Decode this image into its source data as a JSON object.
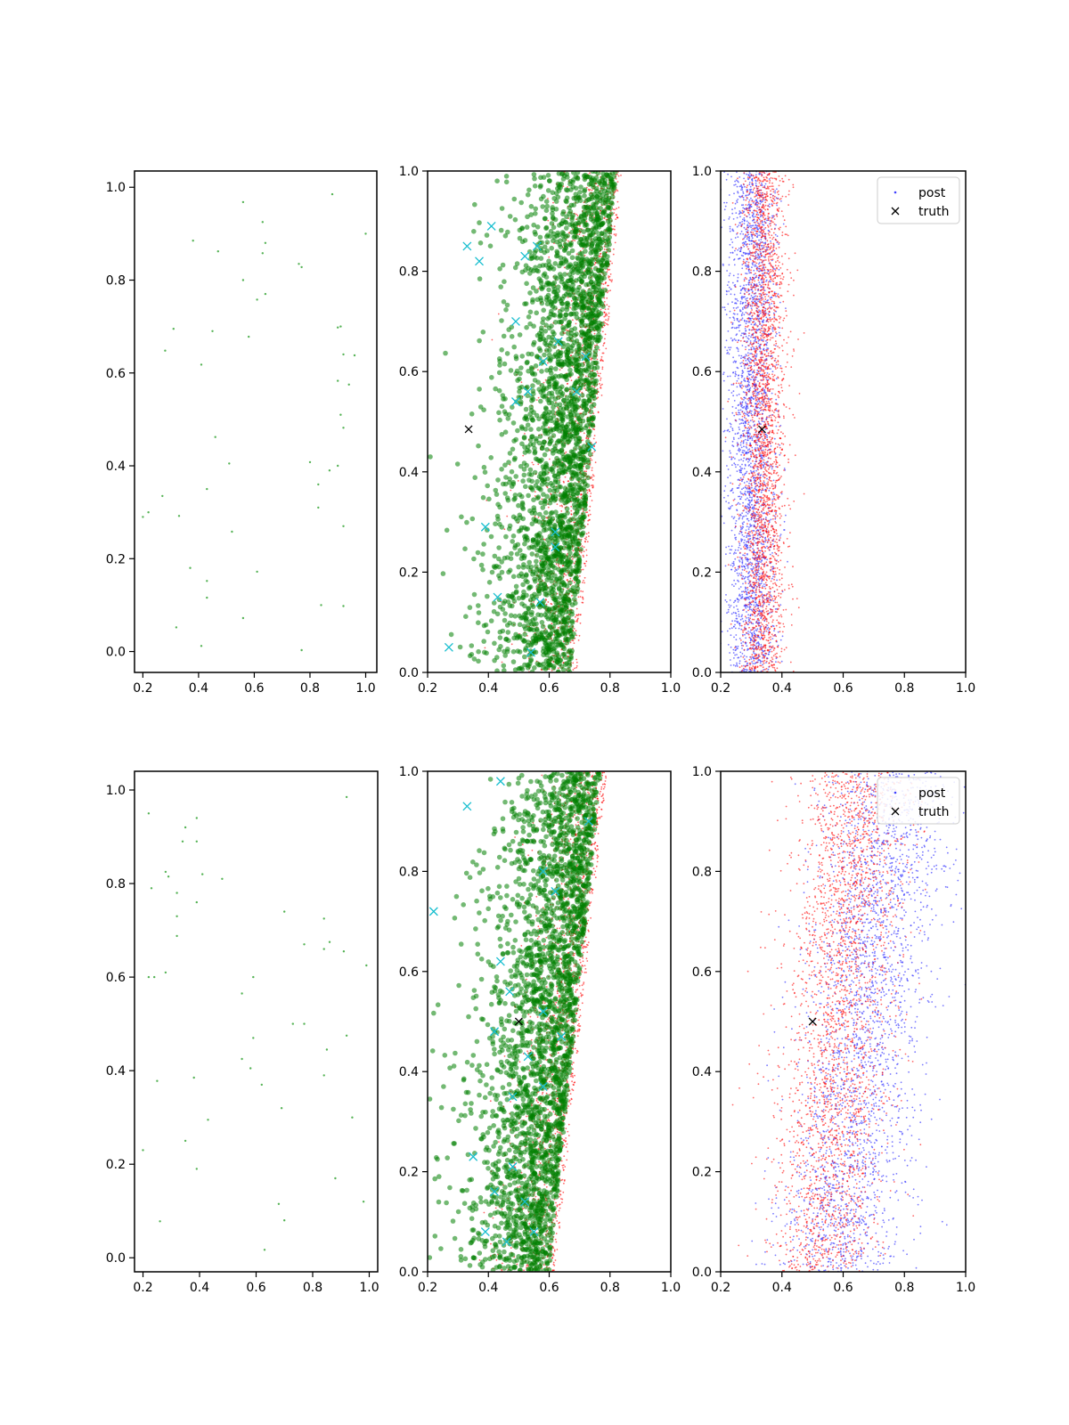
{
  "chart_data": [
    {
      "type": "scatter",
      "position": "row1-col1",
      "xlim": [
        0.17,
        1.04
      ],
      "ylim": [
        -0.045,
        1.035
      ],
      "xticks": [
        0.2,
        0.4,
        0.6,
        0.8,
        1.0
      ],
      "yticks": [
        0.0,
        0.2,
        0.4,
        0.6,
        0.8,
        1.0
      ],
      "series": [
        {
          "role": "sample",
          "color": "#2ca02c",
          "marker": "dot",
          "points": [
            [
              0.56,
              0.968
            ],
            [
              0.88,
              0.985
            ],
            [
              0.63,
              0.925
            ],
            [
              1.0,
              0.9
            ],
            [
              0.38,
              0.885
            ],
            [
              0.64,
              0.88
            ],
            [
              0.47,
              0.862
            ],
            [
              0.63,
              0.858
            ],
            [
              0.76,
              0.835
            ],
            [
              0.77,
              0.828
            ],
            [
              0.56,
              0.8
            ],
            [
              0.64,
              0.77
            ],
            [
              0.61,
              0.758
            ],
            [
              0.31,
              0.695
            ],
            [
              0.91,
              0.7
            ],
            [
              0.9,
              0.698
            ],
            [
              0.45,
              0.69
            ],
            [
              0.58,
              0.678
            ],
            [
              0.28,
              0.648
            ],
            [
              0.92,
              0.64
            ],
            [
              0.96,
              0.638
            ],
            [
              0.41,
              0.618
            ],
            [
              0.9,
              0.583
            ],
            [
              0.94,
              0.575
            ],
            [
              0.91,
              0.51
            ],
            [
              0.92,
              0.482
            ],
            [
              0.46,
              0.462
            ],
            [
              0.51,
              0.405
            ],
            [
              0.8,
              0.408
            ],
            [
              0.9,
              0.4
            ],
            [
              0.87,
              0.39
            ],
            [
              0.83,
              0.36
            ],
            [
              0.43,
              0.35
            ],
            [
              0.27,
              0.335
            ],
            [
              0.22,
              0.3
            ],
            [
              0.2,
              0.29
            ],
            [
              0.33,
              0.292
            ],
            [
              0.83,
              0.31
            ],
            [
              0.92,
              0.27
            ],
            [
              0.52,
              0.258
            ],
            [
              0.37,
              0.18
            ],
            [
              0.61,
              0.172
            ],
            [
              0.43,
              0.152
            ],
            [
              0.43,
              0.116
            ],
            [
              0.84,
              0.1
            ],
            [
              0.92,
              0.098
            ],
            [
              0.56,
              0.072
            ],
            [
              0.32,
              0.052
            ],
            [
              0.41,
              0.012
            ],
            [
              0.77,
              0.003
            ]
          ]
        }
      ]
    },
    {
      "type": "scatter",
      "position": "row1-col2",
      "xlim": [
        0.2,
        1.0
      ],
      "ylim": [
        0.0,
        1.0
      ],
      "xticks": [
        0.2,
        0.4,
        0.6,
        0.8,
        1.0
      ],
      "yticks": [
        0.0,
        0.2,
        0.4,
        0.6,
        0.8,
        1.0
      ],
      "cloud_model": {
        "green_n": 2600,
        "red_n": 1500,
        "left_x_at_y0": 0.2,
        "right_x_at_y0": 0.67,
        "right_x_at_y1": 0.82
      },
      "series": [
        {
          "role": "red",
          "color": "#ff0000"
        },
        {
          "role": "green",
          "color": "#008000",
          "alpha": 0.55
        },
        {
          "role": "cyan-x",
          "color": "#17becf",
          "marker": "x",
          "points": [
            [
              0.33,
              0.85
            ],
            [
              0.41,
              0.89
            ],
            [
              0.37,
              0.82
            ],
            [
              0.52,
              0.83
            ],
            [
              0.56,
              0.85
            ],
            [
              0.49,
              0.7
            ],
            [
              0.58,
              0.62
            ],
            [
              0.63,
              0.66
            ],
            [
              0.72,
              0.63
            ],
            [
              0.49,
              0.54
            ],
            [
              0.69,
              0.56
            ],
            [
              0.53,
              0.56
            ],
            [
              0.74,
              0.45
            ],
            [
              0.39,
              0.29
            ],
            [
              0.62,
              0.25
            ],
            [
              0.43,
              0.15
            ],
            [
              0.27,
              0.05
            ],
            [
              0.54,
              0.04
            ],
            [
              0.57,
              0.14
            ],
            [
              0.62,
              0.28
            ]
          ]
        },
        {
          "role": "truth",
          "color": "#000000",
          "marker": "x",
          "points": [
            [
              0.335,
              0.485
            ]
          ]
        }
      ]
    },
    {
      "type": "scatter",
      "position": "row1-col3",
      "xlim": [
        0.2,
        1.0
      ],
      "ylim": [
        0.0,
        1.0
      ],
      "xticks": [
        0.2,
        0.4,
        0.6,
        0.8,
        1.0
      ],
      "yticks": [
        0.0,
        0.2,
        0.4,
        0.6,
        0.8,
        1.0
      ],
      "cloud_model": {
        "blue_n": 2600,
        "red_n": 2600,
        "blue_center_x": 0.3,
        "blue_spread": 0.04,
        "red_center_x": 0.34,
        "red_spread": 0.035
      },
      "legend": {
        "placement": "top-right",
        "entries": [
          "post",
          "truth"
        ]
      },
      "series": [
        {
          "role": "post",
          "label": "post",
          "color": "#4040ff",
          "marker": "dot"
        },
        {
          "role": "red",
          "color": "#ff0000",
          "marker": "dot"
        },
        {
          "role": "truth",
          "label": "truth",
          "color": "#000000",
          "marker": "x",
          "points": [
            [
              0.335,
              0.485
            ]
          ]
        }
      ]
    },
    {
      "type": "scatter",
      "position": "row2-col1",
      "xlim": [
        0.17,
        1.03
      ],
      "ylim": [
        -0.03,
        1.04
      ],
      "xticks": [
        0.2,
        0.4,
        0.6,
        0.8,
        1.0
      ],
      "yticks": [
        0.0,
        0.2,
        0.4,
        0.6,
        0.8,
        1.0
      ],
      "series": [
        {
          "role": "sample",
          "color": "#2ca02c",
          "marker": "dot",
          "points": [
            [
              0.22,
              0.95
            ],
            [
              0.35,
              0.92
            ],
            [
              0.39,
              0.94
            ],
            [
              0.92,
              0.985
            ],
            [
              0.34,
              0.89
            ],
            [
              0.39,
              0.89
            ],
            [
              0.28,
              0.825
            ],
            [
              0.29,
              0.815
            ],
            [
              0.23,
              0.79
            ],
            [
              0.41,
              0.82
            ],
            [
              0.48,
              0.81
            ],
            [
              0.32,
              0.78
            ],
            [
              0.39,
              0.76
            ],
            [
              0.32,
              0.73
            ],
            [
              0.7,
              0.74
            ],
            [
              0.84,
              0.725
            ],
            [
              0.32,
              0.688
            ],
            [
              0.77,
              0.67
            ],
            [
              0.86,
              0.675
            ],
            [
              0.84,
              0.66
            ],
            [
              0.91,
              0.655
            ],
            [
              0.22,
              0.6
            ],
            [
              0.24,
              0.6
            ],
            [
              0.28,
              0.61
            ],
            [
              0.59,
              0.6
            ],
            [
              0.99,
              0.625
            ],
            [
              0.55,
              0.565
            ],
            [
              0.59,
              0.47
            ],
            [
              0.73,
              0.5
            ],
            [
              0.77,
              0.5
            ],
            [
              0.92,
              0.475
            ],
            [
              0.55,
              0.425
            ],
            [
              0.58,
              0.405
            ],
            [
              0.38,
              0.385
            ],
            [
              0.84,
              0.39
            ],
            [
              0.85,
              0.445
            ],
            [
              0.25,
              0.378
            ],
            [
              0.62,
              0.37
            ],
            [
              0.69,
              0.32
            ],
            [
              0.43,
              0.295
            ],
            [
              0.35,
              0.25
            ],
            [
              0.94,
              0.3
            ],
            [
              0.2,
              0.23
            ],
            [
              0.39,
              0.19
            ],
            [
              0.88,
              0.17
            ],
            [
              0.98,
              0.12
            ],
            [
              0.68,
              0.115
            ],
            [
              0.7,
              0.08
            ],
            [
              0.26,
              0.078
            ],
            [
              0.63,
              0.017
            ]
          ]
        }
      ]
    },
    {
      "type": "scatter",
      "position": "row2-col2",
      "xlim": [
        0.2,
        1.0
      ],
      "ylim": [
        0.0,
        1.0
      ],
      "xticks": [
        0.2,
        0.4,
        0.6,
        0.8,
        1.0
      ],
      "yticks": [
        0.0,
        0.2,
        0.4,
        0.6,
        0.8,
        1.0
      ],
      "cloud_model": {
        "green_n": 2600,
        "red_n": 1500,
        "left_x_at_y0": 0.2,
        "right_x_at_y0": 0.6,
        "right_x_at_y1": 0.77
      },
      "series": [
        {
          "role": "red",
          "color": "#ff0000"
        },
        {
          "role": "green",
          "color": "#008000",
          "alpha": 0.55
        },
        {
          "role": "cyan-x",
          "color": "#17becf",
          "marker": "x",
          "points": [
            [
              0.44,
              0.98
            ],
            [
              0.33,
              0.93
            ],
            [
              0.73,
              0.9
            ],
            [
              0.22,
              0.72
            ],
            [
              0.58,
              0.8
            ],
            [
              0.62,
              0.76
            ],
            [
              0.44,
              0.62
            ],
            [
              0.47,
              0.56
            ],
            [
              0.42,
              0.48
            ],
            [
              0.58,
              0.52
            ],
            [
              0.64,
              0.47
            ],
            [
              0.53,
              0.43
            ],
            [
              0.48,
              0.35
            ],
            [
              0.58,
              0.37
            ],
            [
              0.35,
              0.23
            ],
            [
              0.48,
              0.21
            ],
            [
              0.42,
              0.16
            ],
            [
              0.52,
              0.14
            ],
            [
              0.55,
              0.08
            ],
            [
              0.39,
              0.08
            ],
            [
              0.46,
              0.06
            ]
          ]
        },
        {
          "role": "truth",
          "color": "#000000",
          "marker": "x",
          "points": [
            [
              0.5,
              0.5
            ]
          ]
        }
      ]
    },
    {
      "type": "scatter",
      "position": "row2-col3",
      "xlim": [
        0.2,
        1.0
      ],
      "ylim": [
        0.0,
        1.0
      ],
      "xticks": [
        0.2,
        0.4,
        0.6,
        0.8,
        1.0
      ],
      "yticks": [
        0.0,
        0.2,
        0.4,
        0.6,
        0.8,
        1.0
      ],
      "cloud_model": {
        "blue_n": 2600,
        "red_n": 2600,
        "blue_center_x0": 0.58,
        "blue_center_x1": 0.76,
        "blue_spread": 0.1,
        "red_center_x0": 0.54,
        "red_center_x1": 0.64,
        "red_spread": 0.09
      },
      "legend": {
        "placement": "top-right",
        "entries": [
          "post",
          "truth"
        ]
      },
      "series": [
        {
          "role": "post",
          "label": "post",
          "color": "#4040ff",
          "marker": "dot"
        },
        {
          "role": "red",
          "color": "#ff0000",
          "marker": "dot"
        },
        {
          "role": "truth",
          "label": "truth",
          "color": "#000000",
          "marker": "x",
          "points": [
            [
              0.5,
              0.5
            ]
          ]
        }
      ]
    }
  ]
}
